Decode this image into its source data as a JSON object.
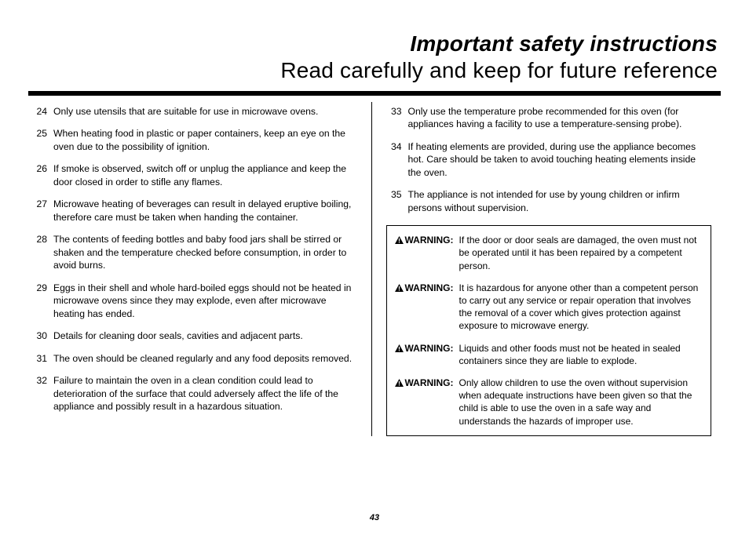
{
  "title": {
    "line1": "Important safety instructions",
    "line2": "Read carefully and keep for future reference"
  },
  "left_items": [
    {
      "n": "24",
      "t": "Only use utensils that are suitable for use in microwave ovens."
    },
    {
      "n": "25",
      "t": "When heating food in plastic or paper containers, keep an eye on the oven due to the possibility of ignition."
    },
    {
      "n": "26",
      "t": "If smoke is observed, switch off or unplug the appliance and keep the door closed in order to stifle any flames."
    },
    {
      "n": "27",
      "t": "Microwave heating of beverages can result in delayed eruptive boiling, therefore care must be taken when handing the container."
    },
    {
      "n": "28",
      "t": "The contents of feeding bottles and baby food jars shall be stirred or shaken and the temperature checked before consumption, in order to avoid burns."
    },
    {
      "n": "29",
      "t": "Eggs in their shell and whole hard-boiled eggs should not be heated in microwave ovens since they may explode, even after microwave heating has ended."
    },
    {
      "n": "30",
      "t": "Details for cleaning door seals, cavities and adjacent parts."
    },
    {
      "n": "31",
      "t": "The oven should be cleaned regularly and any food deposits removed."
    },
    {
      "n": "32",
      "t": "Failure to maintain the oven in a clean condition could lead to deterioration of the surface that could adversely affect the life of the appliance and possibly result in a hazardous situation."
    }
  ],
  "right_items": [
    {
      "n": "33",
      "t": "Only use the temperature probe recommended for this oven (for appliances having a facility to use a temperature-sensing probe)."
    },
    {
      "n": "34",
      "t": "If heating elements are provided, during use the appliance becomes hot. Care should be taken to avoid touching heating elements inside the oven."
    },
    {
      "n": "35",
      "t": "The appliance is not intended for use by young children or infirm persons without supervision."
    }
  ],
  "warning_label": "WARNING",
  "warnings": [
    "If the door or door seals are damaged, the oven must not be operated until it has been repaired by a competent person.",
    "It is hazardous for anyone other than a competent person to carry out any service or repair operation that involves the removal of a cover which gives protection against exposure to microwave energy.",
    "Liquids and other foods must not be heated in sealed containers since they are liable to explode.",
    "Only allow children to use the oven without supervision when adequate instructions have been given so that the child is able to use the oven in a safe way and understands the hazards of improper use."
  ],
  "page_number": "43"
}
